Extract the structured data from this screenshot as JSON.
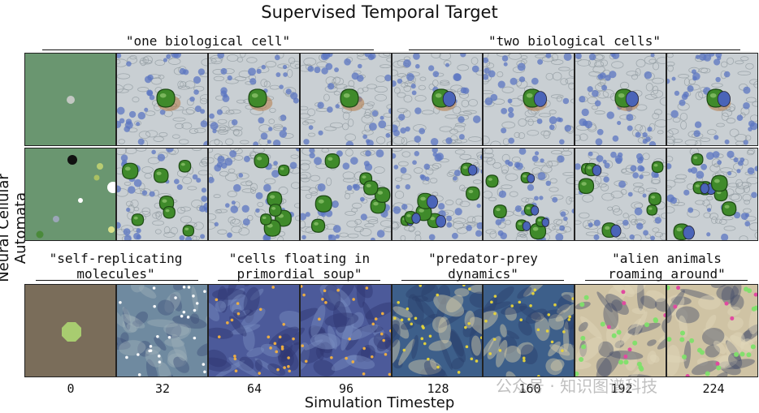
{
  "title": "Supervised Temporal Target",
  "ylabel": "Neural Cellular Automata",
  "xlabel": "Simulation Timestep",
  "prompts": {
    "one_cell": "\"one biological cell\"",
    "two_cells": "\"two biological cells\"",
    "self_replicating": "\"self-replicating\nmolecules\"",
    "cells_floating": "\"cells floating in\nprimordial soup\"",
    "predator_prey": "\"predator-prey\ndynamics\"",
    "alien_animals": "\"alien animals\nroaming around\""
  },
  "timesteps": [
    "0",
    "32",
    "64",
    "96",
    "128",
    "160",
    "192",
    "224"
  ],
  "watermark": "公众号 · 知识图谱科技",
  "colors": {
    "row1_seed_bg": "#6a9670",
    "row3_seed_bg": "#7a6d5a",
    "cell_green": "#3f8a2a",
    "bio_bg": "#c9cfd3"
  }
}
